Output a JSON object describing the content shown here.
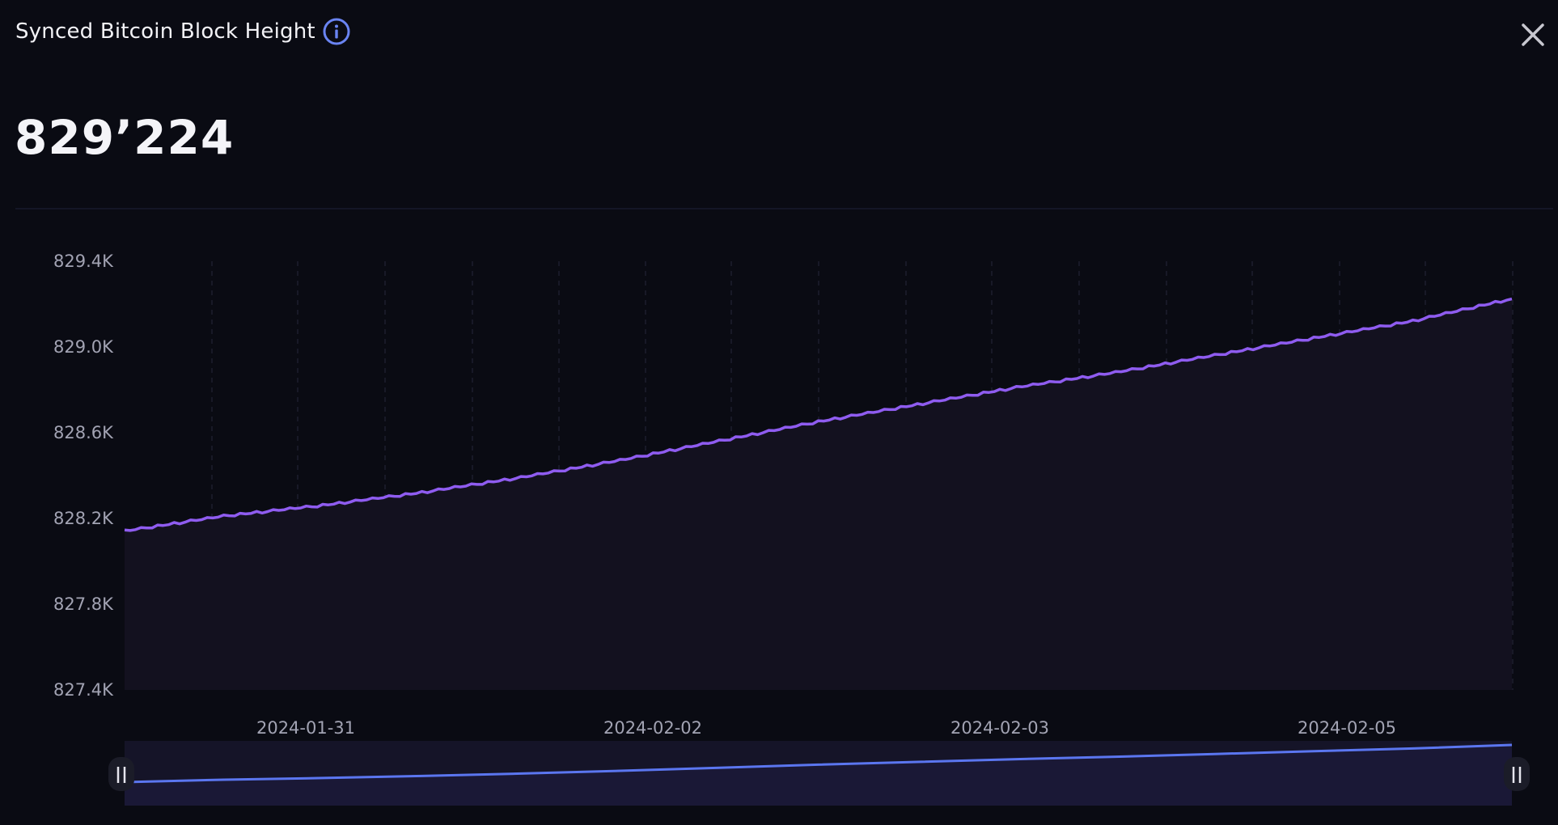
{
  "header": {
    "title": "Synced Bitcoin Block Height",
    "info_icon": "info-circle-icon",
    "close_icon": "close-icon"
  },
  "summary": {
    "value": "829’224"
  },
  "colors": {
    "background": "#0a0b13",
    "line": "#8f5cf0",
    "area": "#13111f",
    "navigator_line": "#5b76f0",
    "info_icon": "#6a84f2",
    "close_icon": "#c7c7cf"
  },
  "chart_data": {
    "type": "area",
    "title": "",
    "xlabel": "",
    "ylabel": "",
    "ylim": [
      827400,
      829400
    ],
    "y_ticks": [
      829400,
      829000,
      828600,
      828200,
      827800,
      827400
    ],
    "y_tick_labels": [
      "829.4K",
      "829.0K",
      "828.6K",
      "828.2K",
      "827.8K",
      "827.4K"
    ],
    "x_tick_labels": [
      "2024-01-31",
      "2024-02-02",
      "2024-02-03",
      "2024-02-05"
    ],
    "grid": "vertical dashed",
    "legend": "none",
    "series": [
      {
        "x": [
          "2024-01-30 12:00",
          "2024-01-31 00:00",
          "2024-01-31 12:00",
          "2024-02-01 00:00",
          "2024-02-01 12:00",
          "2024-02-02 00:00",
          "2024-02-02 12:00",
          "2024-02-03 00:00",
          "2024-02-03 12:00",
          "2024-02-04 00:00",
          "2024-02-04 12:00",
          "2024-02-05 00:00",
          "2024-02-05 12:00",
          "2024-02-06 00:00"
        ],
        "values": [
          828140,
          828210,
          828260,
          828320,
          828390,
          828470,
          828560,
          828650,
          828730,
          828810,
          828880,
          828960,
          829040,
          829120
        ]
      }
    ],
    "last_value": 829224,
    "navigator": {
      "handles": [
        "left-handle",
        "right-handle"
      ]
    }
  }
}
